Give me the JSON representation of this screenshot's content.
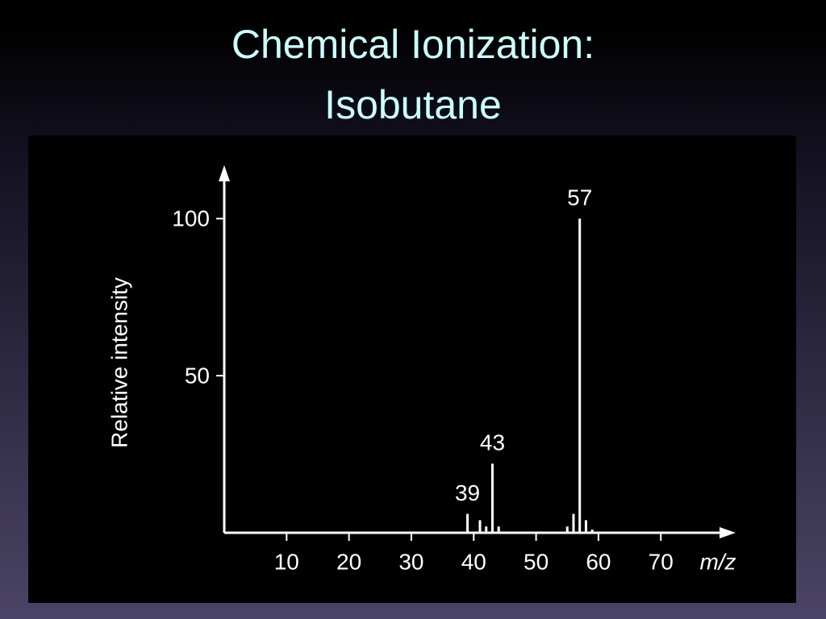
{
  "title": [
    "Chemical Ionization:",
    "Isobutane"
  ],
  "chart_data": {
    "type": "stem",
    "ylabel": "Relative intensity",
    "xlabel": "m/z",
    "x": [
      39,
      41,
      42,
      43,
      44,
      55,
      56,
      57,
      58,
      59
    ],
    "values": [
      6,
      4,
      2,
      22,
      2,
      2,
      6,
      100,
      4,
      1
    ],
    "labels": [
      "39",
      null,
      null,
      "43",
      null,
      null,
      null,
      "57",
      null,
      null
    ],
    "color": "#ffffff",
    "xlim": [
      0,
      82
    ],
    "xticks": [
      10,
      20,
      30,
      40,
      50,
      60,
      70
    ],
    "ylim": [
      0,
      117
    ],
    "yticks": [
      50,
      100
    ],
    "grid": false
  }
}
